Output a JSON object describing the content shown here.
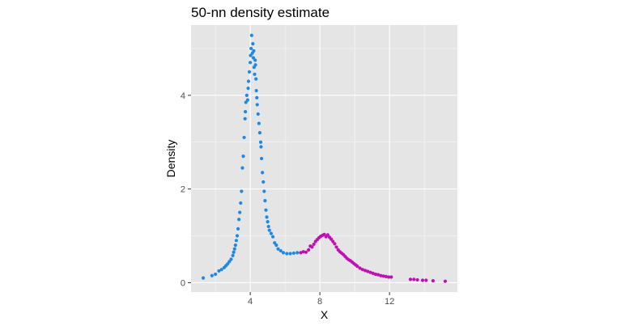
{
  "chart_data": {
    "type": "scatter",
    "title": "50-nn density estimate",
    "xlabel": "X",
    "ylabel": "Density",
    "xlim": [
      0.6,
      15.9
    ],
    "ylim": [
      -0.2,
      5.5
    ],
    "x_ticks": [
      4,
      8,
      12
    ],
    "y_ticks": [
      0,
      2,
      4
    ],
    "grid": true,
    "legend": "none",
    "colors": {
      "panel": "#E5E5E5",
      "grid": "#FFFFFF",
      "group_a": "#1E88E5",
      "group_b": "#C010B4"
    },
    "series": [
      {
        "color_key": "group_a",
        "points": [
          [
            1.3,
            0.1
          ],
          [
            1.8,
            0.15
          ],
          [
            2.0,
            0.18
          ],
          [
            2.2,
            0.25
          ],
          [
            2.35,
            0.28
          ],
          [
            2.5,
            0.32
          ],
          [
            2.6,
            0.36
          ],
          [
            2.7,
            0.4
          ],
          [
            2.8,
            0.45
          ],
          [
            2.9,
            0.5
          ],
          [
            3.0,
            0.58
          ],
          [
            3.05,
            0.65
          ],
          [
            3.1,
            0.72
          ],
          [
            3.15,
            0.8
          ],
          [
            3.2,
            0.9
          ],
          [
            3.25,
            1.0
          ],
          [
            3.3,
            1.15
          ],
          [
            3.35,
            1.35
          ],
          [
            3.4,
            1.5
          ],
          [
            3.45,
            1.7
          ],
          [
            3.5,
            1.95
          ],
          [
            3.55,
            2.45
          ],
          [
            3.6,
            2.7
          ],
          [
            3.65,
            3.1
          ],
          [
            3.7,
            3.5
          ],
          [
            3.72,
            3.65
          ],
          [
            3.75,
            3.85
          ],
          [
            3.8,
            4.0
          ],
          [
            3.85,
            3.9
          ],
          [
            3.88,
            4.15
          ],
          [
            3.9,
            4.3
          ],
          [
            3.95,
            4.5
          ],
          [
            4.0,
            4.7
          ],
          [
            4.02,
            4.85
          ],
          [
            4.05,
            5.0
          ],
          [
            4.08,
            5.28
          ],
          [
            4.12,
            4.9
          ],
          [
            4.15,
            5.1
          ],
          [
            4.18,
            4.8
          ],
          [
            4.2,
            4.95
          ],
          [
            4.22,
            4.6
          ],
          [
            4.25,
            4.45
          ],
          [
            4.28,
            4.75
          ],
          [
            4.3,
            4.65
          ],
          [
            4.33,
            4.35
          ],
          [
            4.35,
            4.1
          ],
          [
            4.38,
            3.95
          ],
          [
            4.4,
            3.8
          ],
          [
            4.45,
            3.6
          ],
          [
            4.5,
            3.4
          ],
          [
            4.55,
            3.2
          ],
          [
            4.6,
            3.0
          ],
          [
            4.62,
            2.9
          ],
          [
            4.65,
            2.65
          ],
          [
            4.7,
            2.35
          ],
          [
            4.75,
            2.15
          ],
          [
            4.8,
            1.95
          ],
          [
            4.85,
            1.75
          ],
          [
            4.9,
            1.55
          ],
          [
            4.95,
            1.4
          ],
          [
            5.0,
            1.3
          ],
          [
            5.05,
            1.2
          ],
          [
            5.1,
            1.12
          ],
          [
            5.2,
            1.05
          ],
          [
            5.3,
            0.98
          ],
          [
            5.4,
            0.85
          ],
          [
            5.5,
            0.8
          ],
          [
            5.6,
            0.72
          ],
          [
            5.75,
            0.68
          ],
          [
            5.9,
            0.64
          ],
          [
            6.1,
            0.62
          ],
          [
            6.3,
            0.62
          ],
          [
            6.5,
            0.63
          ],
          [
            6.7,
            0.64
          ]
        ]
      },
      {
        "color_key": "group_b",
        "points": [
          [
            6.9,
            0.64
          ],
          [
            7.05,
            0.66
          ],
          [
            7.2,
            0.65
          ],
          [
            7.35,
            0.7
          ],
          [
            7.45,
            0.78
          ],
          [
            7.55,
            0.76
          ],
          [
            7.65,
            0.82
          ],
          [
            7.75,
            0.88
          ],
          [
            7.85,
            0.92
          ],
          [
            7.95,
            0.96
          ],
          [
            8.05,
            0.99
          ],
          [
            8.15,
            1.01
          ],
          [
            8.25,
            1.03
          ],
          [
            8.35,
            0.98
          ],
          [
            8.45,
            1.02
          ],
          [
            8.55,
            0.97
          ],
          [
            8.65,
            0.93
          ],
          [
            8.75,
            0.88
          ],
          [
            8.85,
            0.83
          ],
          [
            8.95,
            0.76
          ],
          [
            9.05,
            0.7
          ],
          [
            9.15,
            0.66
          ],
          [
            9.25,
            0.63
          ],
          [
            9.35,
            0.6
          ],
          [
            9.45,
            0.56
          ],
          [
            9.55,
            0.52
          ],
          [
            9.65,
            0.49
          ],
          [
            9.75,
            0.47
          ],
          [
            9.85,
            0.44
          ],
          [
            9.95,
            0.41
          ],
          [
            10.05,
            0.38
          ],
          [
            10.15,
            0.35
          ],
          [
            10.3,
            0.31
          ],
          [
            10.45,
            0.28
          ],
          [
            10.6,
            0.26
          ],
          [
            10.75,
            0.24
          ],
          [
            10.9,
            0.22
          ],
          [
            11.05,
            0.2
          ],
          [
            11.2,
            0.18
          ],
          [
            11.35,
            0.17
          ],
          [
            11.5,
            0.15
          ],
          [
            11.65,
            0.14
          ],
          [
            11.8,
            0.13
          ],
          [
            11.95,
            0.12
          ],
          [
            12.1,
            0.12
          ],
          [
            13.2,
            0.07
          ],
          [
            13.4,
            0.07
          ],
          [
            13.6,
            0.06
          ],
          [
            13.9,
            0.05
          ],
          [
            14.1,
            0.05
          ],
          [
            14.5,
            0.04
          ],
          [
            15.2,
            0.03
          ]
        ]
      }
    ]
  }
}
